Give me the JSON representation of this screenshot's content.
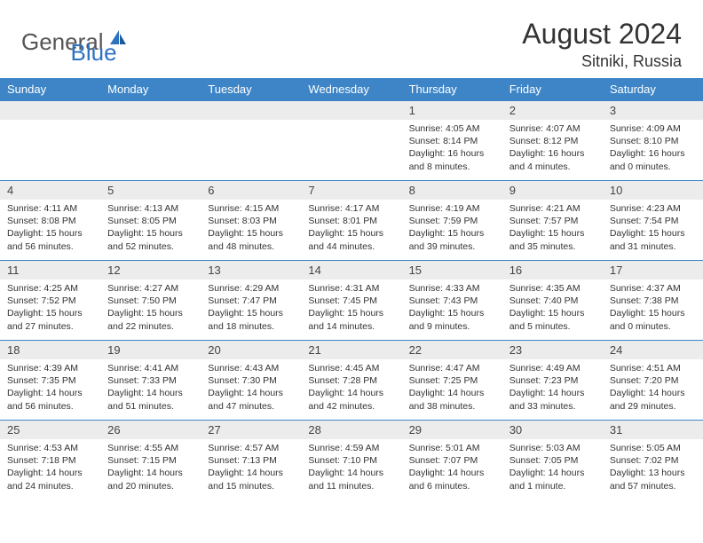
{
  "logo": {
    "text1": "General",
    "text2": "Blue"
  },
  "title": "August 2024",
  "location": "Sitniki, Russia",
  "colors": {
    "header_bg": "#3e85c7",
    "header_text": "#ffffff",
    "daynum_bg": "#ececec",
    "border": "#3e85c7",
    "body_text": "#333333",
    "logo_gray": "#555555",
    "logo_blue": "#2d72c1"
  },
  "weekdays": [
    "Sunday",
    "Monday",
    "Tuesday",
    "Wednesday",
    "Thursday",
    "Friday",
    "Saturday"
  ],
  "weeks": [
    [
      null,
      null,
      null,
      null,
      {
        "n": "1",
        "sr": "4:05 AM",
        "ss": "8:14 PM",
        "dl": "16 hours and 8 minutes."
      },
      {
        "n": "2",
        "sr": "4:07 AM",
        "ss": "8:12 PM",
        "dl": "16 hours and 4 minutes."
      },
      {
        "n": "3",
        "sr": "4:09 AM",
        "ss": "8:10 PM",
        "dl": "16 hours and 0 minutes."
      }
    ],
    [
      {
        "n": "4",
        "sr": "4:11 AM",
        "ss": "8:08 PM",
        "dl": "15 hours and 56 minutes."
      },
      {
        "n": "5",
        "sr": "4:13 AM",
        "ss": "8:05 PM",
        "dl": "15 hours and 52 minutes."
      },
      {
        "n": "6",
        "sr": "4:15 AM",
        "ss": "8:03 PM",
        "dl": "15 hours and 48 minutes."
      },
      {
        "n": "7",
        "sr": "4:17 AM",
        "ss": "8:01 PM",
        "dl": "15 hours and 44 minutes."
      },
      {
        "n": "8",
        "sr": "4:19 AM",
        "ss": "7:59 PM",
        "dl": "15 hours and 39 minutes."
      },
      {
        "n": "9",
        "sr": "4:21 AM",
        "ss": "7:57 PM",
        "dl": "15 hours and 35 minutes."
      },
      {
        "n": "10",
        "sr": "4:23 AM",
        "ss": "7:54 PM",
        "dl": "15 hours and 31 minutes."
      }
    ],
    [
      {
        "n": "11",
        "sr": "4:25 AM",
        "ss": "7:52 PM",
        "dl": "15 hours and 27 minutes."
      },
      {
        "n": "12",
        "sr": "4:27 AM",
        "ss": "7:50 PM",
        "dl": "15 hours and 22 minutes."
      },
      {
        "n": "13",
        "sr": "4:29 AM",
        "ss": "7:47 PM",
        "dl": "15 hours and 18 minutes."
      },
      {
        "n": "14",
        "sr": "4:31 AM",
        "ss": "7:45 PM",
        "dl": "15 hours and 14 minutes."
      },
      {
        "n": "15",
        "sr": "4:33 AM",
        "ss": "7:43 PM",
        "dl": "15 hours and 9 minutes."
      },
      {
        "n": "16",
        "sr": "4:35 AM",
        "ss": "7:40 PM",
        "dl": "15 hours and 5 minutes."
      },
      {
        "n": "17",
        "sr": "4:37 AM",
        "ss": "7:38 PM",
        "dl": "15 hours and 0 minutes."
      }
    ],
    [
      {
        "n": "18",
        "sr": "4:39 AM",
        "ss": "7:35 PM",
        "dl": "14 hours and 56 minutes."
      },
      {
        "n": "19",
        "sr": "4:41 AM",
        "ss": "7:33 PM",
        "dl": "14 hours and 51 minutes."
      },
      {
        "n": "20",
        "sr": "4:43 AM",
        "ss": "7:30 PM",
        "dl": "14 hours and 47 minutes."
      },
      {
        "n": "21",
        "sr": "4:45 AM",
        "ss": "7:28 PM",
        "dl": "14 hours and 42 minutes."
      },
      {
        "n": "22",
        "sr": "4:47 AM",
        "ss": "7:25 PM",
        "dl": "14 hours and 38 minutes."
      },
      {
        "n": "23",
        "sr": "4:49 AM",
        "ss": "7:23 PM",
        "dl": "14 hours and 33 minutes."
      },
      {
        "n": "24",
        "sr": "4:51 AM",
        "ss": "7:20 PM",
        "dl": "14 hours and 29 minutes."
      }
    ],
    [
      {
        "n": "25",
        "sr": "4:53 AM",
        "ss": "7:18 PM",
        "dl": "14 hours and 24 minutes."
      },
      {
        "n": "26",
        "sr": "4:55 AM",
        "ss": "7:15 PM",
        "dl": "14 hours and 20 minutes."
      },
      {
        "n": "27",
        "sr": "4:57 AM",
        "ss": "7:13 PM",
        "dl": "14 hours and 15 minutes."
      },
      {
        "n": "28",
        "sr": "4:59 AM",
        "ss": "7:10 PM",
        "dl": "14 hours and 11 minutes."
      },
      {
        "n": "29",
        "sr": "5:01 AM",
        "ss": "7:07 PM",
        "dl": "14 hours and 6 minutes."
      },
      {
        "n": "30",
        "sr": "5:03 AM",
        "ss": "7:05 PM",
        "dl": "14 hours and 1 minute."
      },
      {
        "n": "31",
        "sr": "5:05 AM",
        "ss": "7:02 PM",
        "dl": "13 hours and 57 minutes."
      }
    ]
  ],
  "labels": {
    "sunrise": "Sunrise: ",
    "sunset": "Sunset: ",
    "daylight": "Daylight: "
  }
}
